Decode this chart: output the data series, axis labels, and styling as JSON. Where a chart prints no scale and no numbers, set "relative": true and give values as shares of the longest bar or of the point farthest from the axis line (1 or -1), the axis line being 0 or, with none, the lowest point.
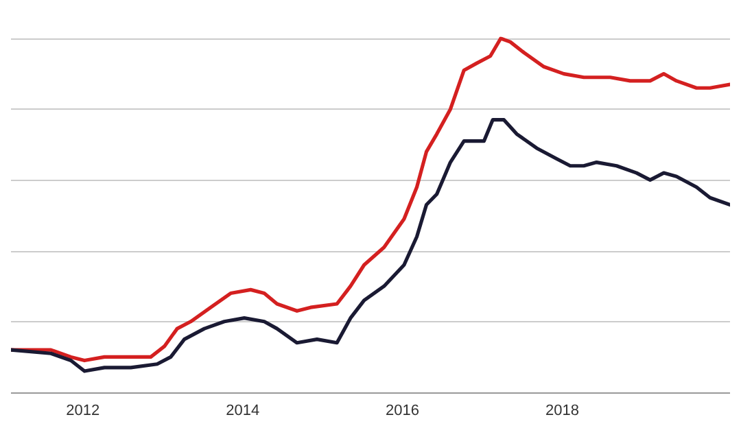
{
  "chart_data": {
    "type": "line",
    "relative": true,
    "grid": "y",
    "marker": "none",
    "line_style": "solid",
    "xlim": [
      2011.1,
      2020.1
    ],
    "xticks": [
      2012,
      2014,
      2016,
      2018
    ],
    "series": [
      {
        "color": "#d42020",
        "x": [
          2011.1,
          2011.6,
          2011.85,
          2012.02,
          2012.27,
          2012.6,
          2012.85,
          2013.02,
          2013.18,
          2013.35,
          2013.6,
          2013.85,
          2014.1,
          2014.27,
          2014.43,
          2014.68,
          2014.85,
          2015.18,
          2015.35,
          2015.52,
          2015.77,
          2016.02,
          2016.18,
          2016.3,
          2016.43,
          2016.6,
          2016.77,
          2016.93,
          2017.1,
          2017.23,
          2017.35,
          2017.52,
          2017.77,
          2018.02,
          2018.27,
          2018.6,
          2018.85,
          2019.1,
          2019.27,
          2019.43,
          2019.68,
          2019.85,
          2020.1
        ],
        "values": [
          0.12,
          0.12,
          0.1,
          0.09,
          0.1,
          0.1,
          0.1,
          0.13,
          0.18,
          0.2,
          0.24,
          0.28,
          0.29,
          0.28,
          0.25,
          0.23,
          0.24,
          0.25,
          0.3,
          0.36,
          0.41,
          0.49,
          0.58,
          0.68,
          0.73,
          0.8,
          0.91,
          0.93,
          0.95,
          1.0,
          0.99,
          0.96,
          0.92,
          0.9,
          0.89,
          0.89,
          0.88,
          0.88,
          0.9,
          0.88,
          0.86,
          0.86,
          0.87
        ]
      },
      {
        "color": "#1a1a33",
        "x": [
          2011.1,
          2011.6,
          2011.85,
          2012.02,
          2012.27,
          2012.6,
          2012.93,
          2013.1,
          2013.27,
          2013.52,
          2013.77,
          2014.02,
          2014.27,
          2014.43,
          2014.68,
          2014.93,
          2015.18,
          2015.35,
          2015.52,
          2015.77,
          2016.02,
          2016.18,
          2016.3,
          2016.43,
          2016.6,
          2016.77,
          2017.02,
          2017.13,
          2017.27,
          2017.43,
          2017.68,
          2017.93,
          2018.1,
          2018.27,
          2018.43,
          2018.68,
          2018.93,
          2019.1,
          2019.27,
          2019.43,
          2019.68,
          2019.85,
          2020.1
        ],
        "values": [
          0.12,
          0.11,
          0.09,
          0.06,
          0.07,
          0.07,
          0.08,
          0.1,
          0.15,
          0.18,
          0.2,
          0.21,
          0.2,
          0.18,
          0.14,
          0.15,
          0.14,
          0.21,
          0.26,
          0.3,
          0.36,
          0.44,
          0.53,
          0.56,
          0.65,
          0.71,
          0.71,
          0.77,
          0.77,
          0.73,
          0.69,
          0.66,
          0.64,
          0.64,
          0.65,
          0.64,
          0.62,
          0.6,
          0.62,
          0.61,
          0.58,
          0.55,
          0.53
        ]
      }
    ]
  }
}
